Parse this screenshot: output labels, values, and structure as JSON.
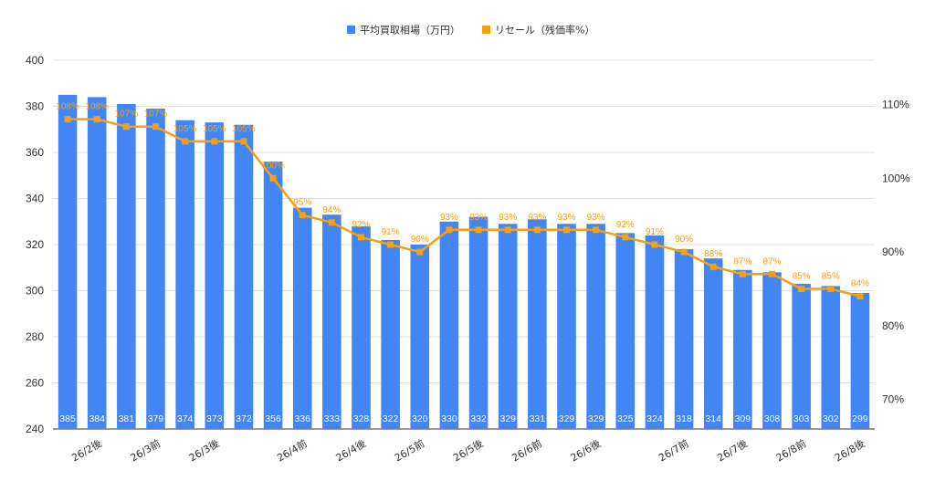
{
  "chart_data": {
    "type": "bar",
    "categories": [
      "",
      "26/2後",
      "",
      "26/3前",
      "",
      "26/3後",
      "",
      "",
      "26/4前",
      "",
      "26/4後",
      "",
      "26/5前",
      "",
      "26/5後",
      "",
      "26/6前",
      "",
      "26/6後",
      "",
      "",
      "26/7前",
      "",
      "26/7後",
      "",
      "26/8前",
      "",
      "26/8後"
    ],
    "series": [
      {
        "name": "平均買取相場（万円）",
        "type": "bar",
        "axis": "left",
        "color": "#4285F4",
        "values": [
          385,
          384,
          381,
          379,
          374,
          373,
          372,
          356,
          336,
          333,
          328,
          322,
          320,
          330,
          332,
          329,
          331,
          329,
          329,
          325,
          324,
          318,
          314,
          309,
          308,
          303,
          302,
          299
        ]
      },
      {
        "name": "リセール（残価率%）",
        "type": "line",
        "axis": "right",
        "color": "#F4A012",
        "values": [
          108,
          108,
          107,
          107,
          105,
          105,
          105,
          100,
          95,
          94,
          92,
          91,
          90,
          93,
          93,
          93,
          93,
          93,
          93,
          92,
          91,
          90,
          88,
          87,
          87,
          85,
          85,
          84
        ],
        "labels": [
          "108%",
          "108%",
          "107%",
          "107%",
          "105%",
          "105%",
          "105%",
          "100%",
          "95%",
          "94%",
          "92%",
          "91%",
          "90%",
          "93%",
          "93%",
          "93%",
          "93%",
          "93%",
          "93%",
          "92%",
          "91%",
          "90%",
          "88%",
          "87%",
          "87%",
          "85%",
          "85%",
          "84%"
        ]
      }
    ],
    "left_axis": {
      "min": 240,
      "max": 400,
      "ticks": [
        "240",
        "260",
        "280",
        "300",
        "320",
        "340",
        "360",
        "380",
        "400"
      ]
    },
    "right_axis": {
      "min": 66,
      "max": 116,
      "ticks": [
        "70%",
        "80%",
        "90%",
        "100%",
        "110%"
      ],
      "tick_values": [
        70,
        80,
        90,
        100,
        110
      ]
    },
    "grid": true,
    "legend": "top-center",
    "title": "",
    "xlabel": "",
    "ylabel": ""
  }
}
